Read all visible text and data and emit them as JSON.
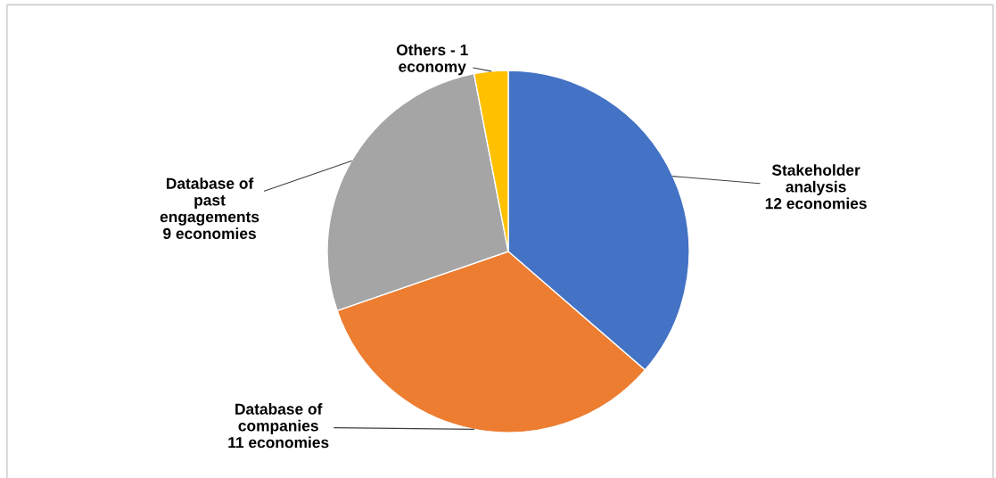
{
  "chart_data": {
    "type": "pie",
    "categories": [
      "Stakeholder\nanalysis",
      "Database of\ncompanies",
      "Database of\npast\nengagements",
      "Others - 1\neconomy"
    ],
    "values": [
      12,
      11,
      9,
      1
    ],
    "value_labels": [
      "12 economies",
      "11 economies",
      "9 economies",
      null
    ],
    "colors": [
      "#4472c4",
      "#ed7d31",
      "#a5a5a5",
      "#ffc000"
    ],
    "legend": false
  }
}
